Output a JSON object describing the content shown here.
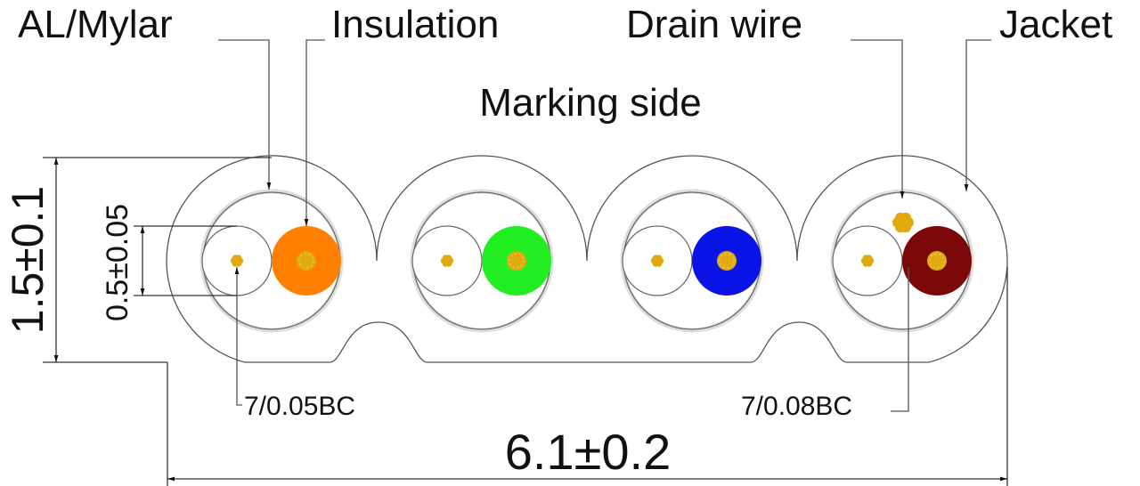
{
  "labels": {
    "al_mylar": "AL/Mylar",
    "insulation": "Insulation",
    "drain_wire": "Drain wire",
    "jacket": "Jacket",
    "marking_side": "Marking side",
    "conductor_small": "7/0.05BC",
    "conductor_drain": "7/0.08BC"
  },
  "dimensions": {
    "height": "1.5±0.1",
    "insulation_diameter": "0.5±0.05",
    "width": "6.1±0.2"
  },
  "pairs": [
    {
      "color": "#ff8000"
    },
    {
      "color": "#22ee22"
    },
    {
      "color": "#0a14e6"
    },
    {
      "color": "#7a0808"
    }
  ],
  "conductor_color": "#e0aa10"
}
